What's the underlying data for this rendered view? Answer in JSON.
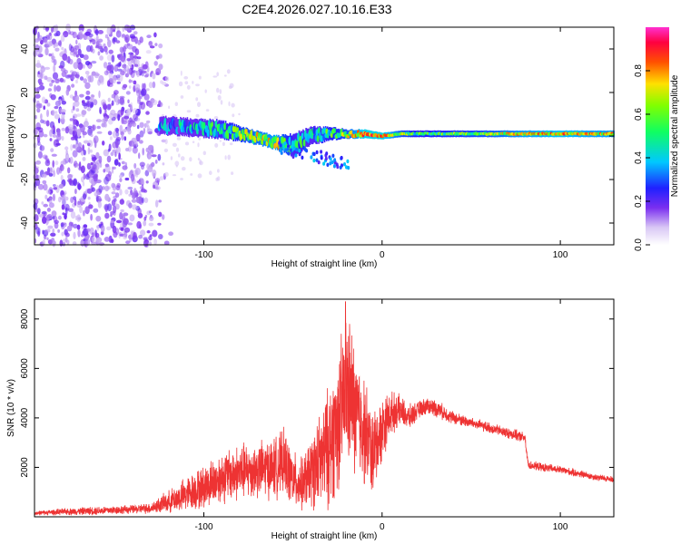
{
  "title": "C2E4.2026.027.10.16.E33",
  "chart_data": [
    {
      "type": "heatmap",
      "xlabel": "Height of straight line (km)",
      "ylabel": "Frequency (Hz)",
      "xlim": [
        -195,
        130
      ],
      "ylim": [
        -50,
        50
      ],
      "xticks": [
        -100,
        0,
        100
      ],
      "xtick_labels": [
        "-100",
        "0",
        "100"
      ],
      "yticks": [
        -40,
        -20,
        0,
        20,
        40
      ],
      "ytick_labels": [
        "-40",
        "-20",
        "0",
        "20",
        "40"
      ],
      "noise_region_km": [
        -195,
        -118
      ],
      "signal_track": {
        "x_km": [
          -125,
          -110,
          -90,
          -75,
          -60,
          -50,
          -40,
          -30,
          -20,
          -10,
          0,
          10,
          20,
          40,
          60,
          80,
          100,
          120,
          130
        ],
        "center_hz": [
          5,
          4,
          3,
          0,
          -3,
          -4,
          0,
          1,
          1,
          1,
          0,
          1,
          1,
          1,
          1,
          1,
          1,
          1,
          1
        ],
        "half_width_hz": [
          4,
          4,
          4,
          3,
          3,
          5,
          4,
          3,
          2,
          2,
          1.5,
          1.5,
          1.5,
          1.5,
          1.5,
          1.5,
          1.5,
          1.5,
          1.5
        ],
        "amplitude": [
          0.3,
          0.35,
          0.45,
          0.6,
          0.7,
          0.45,
          0.4,
          0.5,
          0.6,
          0.8,
          0.8,
          0.6,
          0.5,
          0.55,
          0.6,
          0.7,
          0.75,
          0.7,
          0.7
        ]
      },
      "colorbar": {
        "label": "Normalized spectral amplitude",
        "range": [
          0,
          1
        ],
        "ticks": [
          0.0,
          0.2,
          0.4,
          0.6,
          0.8
        ],
        "tick_labels": [
          "0.0",
          "0.2",
          "0.4",
          "0.6",
          "0.8"
        ]
      }
    },
    {
      "type": "line",
      "xlabel": "Height of straight line (km)",
      "ylabel": "SNR (10 * v/v)",
      "xlim": [
        -195,
        130
      ],
      "ylim": [
        0,
        8800
      ],
      "xticks": [
        -100,
        0,
        100
      ],
      "xtick_labels": [
        "-100",
        "0",
        "100"
      ],
      "yticks": [
        2000,
        4000,
        6000,
        8000
      ],
      "ytick_labels": [
        "2000",
        "4000",
        "6000",
        "8000"
      ],
      "color": "#ee3333",
      "series": [
        {
          "name": "SNR",
          "x": [
            -195,
            -180,
            -160,
            -140,
            -130,
            -120,
            -110,
            -100,
            -90,
            -80,
            -70,
            -60,
            -55,
            -50,
            -45,
            -40,
            -35,
            -30,
            -25,
            -22,
            -20,
            -18,
            -15,
            -10,
            -5,
            0,
            5,
            10,
            15,
            20,
            25,
            30,
            35,
            40,
            50,
            60,
            70,
            80,
            82,
            90,
            100,
            110,
            120,
            130
          ],
          "y": [
            150,
            200,
            250,
            300,
            350,
            600,
            900,
            1200,
            1600,
            1800,
            1900,
            2000,
            2200,
            1500,
            1300,
            1800,
            2200,
            2800,
            3800,
            4500,
            5200,
            5000,
            4200,
            3500,
            2500,
            3600,
            4200,
            4300,
            4000,
            4300,
            4500,
            4400,
            4200,
            4000,
            3800,
            3600,
            3400,
            3200,
            2100,
            2000,
            1900,
            1750,
            1600,
            1500
          ],
          "spread": [
            100,
            150,
            200,
            200,
            250,
            500,
            800,
            1000,
            1200,
            1300,
            1300,
            1400,
            1500,
            1300,
            1200,
            1600,
            2200,
            2800,
            3200,
            3500,
            3600,
            3400,
            3000,
            2500,
            2000,
            1500,
            1000,
            700,
            600,
            400,
            400,
            400,
            350,
            300,
            250,
            250,
            250,
            250,
            200,
            200,
            180,
            180,
            160,
            150
          ],
          "peak": {
            "x": -20.5,
            "y": 8700
          }
        }
      ]
    }
  ]
}
